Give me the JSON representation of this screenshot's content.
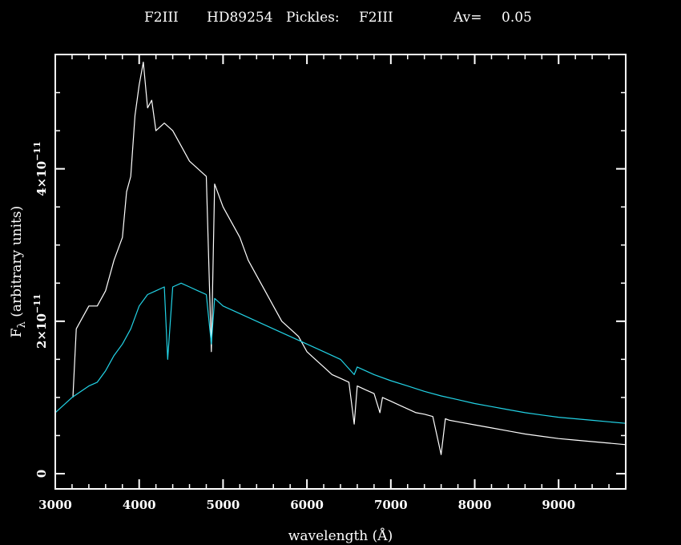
{
  "chart_data": {
    "type": "line",
    "title": {
      "sptype": "F2III",
      "star": "HD89254",
      "pickles_label": "Pickles:",
      "pickles_type": "F2III",
      "av_label": "Av=",
      "av_value": "0.05"
    },
    "xlabel": "wavelength (Å)",
    "ylabel": {
      "f": "F",
      "sub": "λ",
      "rest": " (arbitrary units)"
    },
    "xlim": [
      3000,
      9800
    ],
    "ylim": [
      -2e-12,
      5.5e-11
    ],
    "x_ticks": [
      3000,
      4000,
      5000,
      6000,
      7000,
      8000,
      9000
    ],
    "x_tick_labels": [
      "3000",
      "4000",
      "5000",
      "6000",
      "7000",
      "8000",
      "9000"
    ],
    "y_ticks": [
      {
        "value": 0,
        "label": "0"
      },
      {
        "value": 2e-11,
        "label": "2×10",
        "exp": "−11"
      },
      {
        "value": 4e-11,
        "label": "4×10",
        "exp": "−11"
      }
    ],
    "grid": false,
    "colors": {
      "background": "#000000",
      "frame": "#ffffff",
      "observed": "#ffffff",
      "template": "#22d3e6"
    },
    "series": [
      {
        "key": "observed",
        "color": "#ffffff",
        "x": [
          3210,
          3250,
          3300,
          3400,
          3500,
          3600,
          3700,
          3800,
          3850,
          3900,
          3950,
          4000,
          4050,
          4100,
          4150,
          4200,
          4300,
          4400,
          4500,
          4600,
          4700,
          4800,
          4860,
          4900,
          5000,
          5100,
          5200,
          5300,
          5400,
          5500,
          5600,
          5700,
          5800,
          5900,
          6000,
          6100,
          6200,
          6300,
          6400,
          6500,
          6563,
          6600,
          6700,
          6800,
          6870,
          6900,
          7000,
          7100,
          7200,
          7300,
          7400,
          7500,
          7600,
          7650,
          7700,
          7800,
          8000,
          8200,
          8400,
          8600,
          8800,
          9000,
          9200,
          9400,
          9600,
          9800
        ],
        "y": [
          1e-11,
          1.9e-11,
          2e-11,
          2.2e-11,
          2.2e-11,
          2.4e-11,
          2.8e-11,
          3.1e-11,
          3.7e-11,
          3.9e-11,
          4.7e-11,
          5.1e-11,
          5.4e-11,
          4.8e-11,
          4.9e-11,
          4.5e-11,
          4.6e-11,
          4.5e-11,
          4.3e-11,
          4.1e-11,
          4e-11,
          3.9e-11,
          1.6e-11,
          3.8e-11,
          3.5e-11,
          3.3e-11,
          3.1e-11,
          2.8e-11,
          2.6e-11,
          2.4e-11,
          2.2e-11,
          2e-11,
          1.9e-11,
          1.8e-11,
          1.6e-11,
          1.5e-11,
          1.4e-11,
          1.3e-11,
          1.25e-11,
          1.2e-11,
          6.5e-12,
          1.15e-11,
          1.1e-11,
          1.05e-11,
          8e-12,
          1e-11,
          9.5e-12,
          9e-12,
          8.5e-12,
          8e-12,
          7.8e-12,
          7.5e-12,
          2.5e-12,
          7.2e-12,
          7e-12,
          6.8e-12,
          6.4e-12,
          6e-12,
          5.6e-12,
          5.2e-12,
          4.9e-12,
          4.6e-12,
          4.4e-12,
          4.2e-12,
          4e-12,
          3.8e-12
        ]
      },
      {
        "key": "template",
        "color": "#22d3e6",
        "x": [
          3000,
          3200,
          3400,
          3500,
          3600,
          3700,
          3800,
          3900,
          4000,
          4100,
          4200,
          4300,
          4340,
          4400,
          4500,
          4600,
          4700,
          4800,
          4860,
          4900,
          5000,
          5200,
          5400,
          5600,
          5800,
          6000,
          6200,
          6400,
          6563,
          6600,
          6800,
          7000,
          7200,
          7400,
          7600,
          7800,
          8000,
          8200,
          8400,
          8600,
          8800,
          9000,
          9200,
          9400,
          9600,
          9800
        ],
        "y": [
          8e-12,
          1e-11,
          1.15e-11,
          1.2e-11,
          1.35e-11,
          1.55e-11,
          1.7e-11,
          1.9e-11,
          2.2e-11,
          2.35e-11,
          2.4e-11,
          2.45e-11,
          1.5e-11,
          2.45e-11,
          2.5e-11,
          2.45e-11,
          2.4e-11,
          2.35e-11,
          1.7e-11,
          2.3e-11,
          2.2e-11,
          2.1e-11,
          2e-11,
          1.9e-11,
          1.8e-11,
          1.7e-11,
          1.6e-11,
          1.5e-11,
          1.3e-11,
          1.4e-11,
          1.3e-11,
          1.22e-11,
          1.15e-11,
          1.08e-11,
          1.02e-11,
          9.7e-12,
          9.2e-12,
          8.8e-12,
          8.4e-12,
          8e-12,
          7.7e-12,
          7.4e-12,
          7.2e-12,
          7e-12,
          6.8e-12,
          6.6e-12
        ]
      }
    ]
  }
}
